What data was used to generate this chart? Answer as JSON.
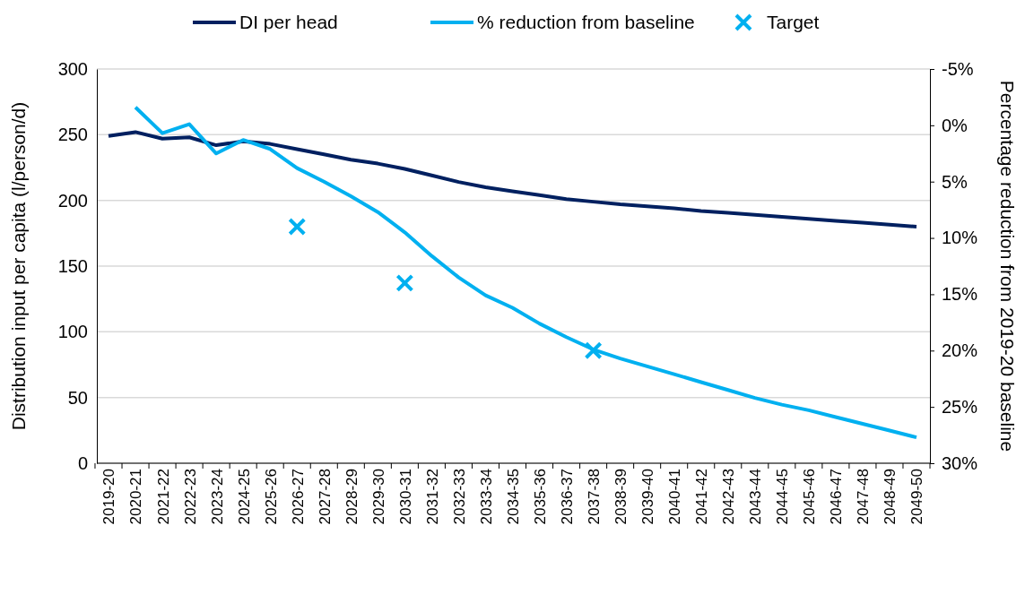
{
  "chart_data": {
    "type": "line",
    "ylabel": "Distribution input per capita (l/person/d)",
    "y2label": "Percentage reduction from 2019-20  baseline",
    "categories": [
      "2019-20",
      "2020-21",
      "2021-22",
      "2022-23",
      "2023-24",
      "2024-25",
      "2025-26",
      "2026-27",
      "2027-28",
      "2028-29",
      "2029-30",
      "2030-31",
      "2031-32",
      "2032-33",
      "2033-34",
      "2034-35",
      "2035-36",
      "2036-37",
      "2037-38",
      "2038-39",
      "2039-40",
      "2040-41",
      "2041-42",
      "2042-43",
      "2043-44",
      "2044-45",
      "2045-46",
      "2046-47",
      "2047-48",
      "2048-49",
      "2049-50"
    ],
    "series": [
      {
        "name": "DI per head",
        "color": "#002060",
        "values": [
          249,
          252,
          247,
          248,
          242,
          245,
          243,
          239,
          235,
          231,
          228,
          224,
          219,
          214,
          210,
          207,
          204,
          201,
          199,
          197,
          195.5,
          194,
          192,
          190.5,
          189,
          187.5,
          186,
          184.5,
          183,
          181.5,
          180
        ]
      },
      {
        "name": "% reduction from baseline",
        "type": "line",
        "axis": "y2",
        "color": "#00b0f0",
        "values": [
          null,
          -1.6,
          0.7,
          -0.1,
          2.5,
          1.3,
          2.1,
          3.8,
          5.0,
          6.3,
          7.7,
          9.5,
          11.6,
          13.5,
          15.1,
          16.2,
          17.6,
          18.8,
          19.9,
          20.7,
          21.4,
          22.1,
          22.8,
          23.5,
          24.2,
          24.8,
          25.3,
          25.9,
          26.5,
          27.1,
          27.7
        ]
      },
      {
        "name": "Target",
        "type": "scatter",
        "axis": "y2",
        "marker": "cross",
        "color": "#00b0f0",
        "values": [
          null,
          null,
          null,
          null,
          null,
          null,
          null,
          9,
          null,
          null,
          null,
          14,
          null,
          null,
          null,
          null,
          null,
          null,
          20,
          null,
          null,
          null,
          null,
          null,
          null,
          null,
          null,
          null,
          null,
          null,
          null
        ]
      }
    ],
    "ylim": [
      0,
      300
    ],
    "yticks": [
      0,
      50,
      100,
      150,
      200,
      250,
      300
    ],
    "y2lim": [
      30,
      -5
    ],
    "y2ticks": [
      {
        "value": -5,
        "label": "-5%"
      },
      {
        "value": 0,
        "label": "0%"
      },
      {
        "value": 5,
        "label": "5%"
      },
      {
        "value": 10,
        "label": "10%"
      },
      {
        "value": 15,
        "label": "15%"
      },
      {
        "value": 20,
        "label": "20%"
      },
      {
        "value": 25,
        "label": "25%"
      },
      {
        "value": 30,
        "label": "30%"
      }
    ],
    "grid": "y",
    "legend": "top",
    "line_style": "solid"
  }
}
